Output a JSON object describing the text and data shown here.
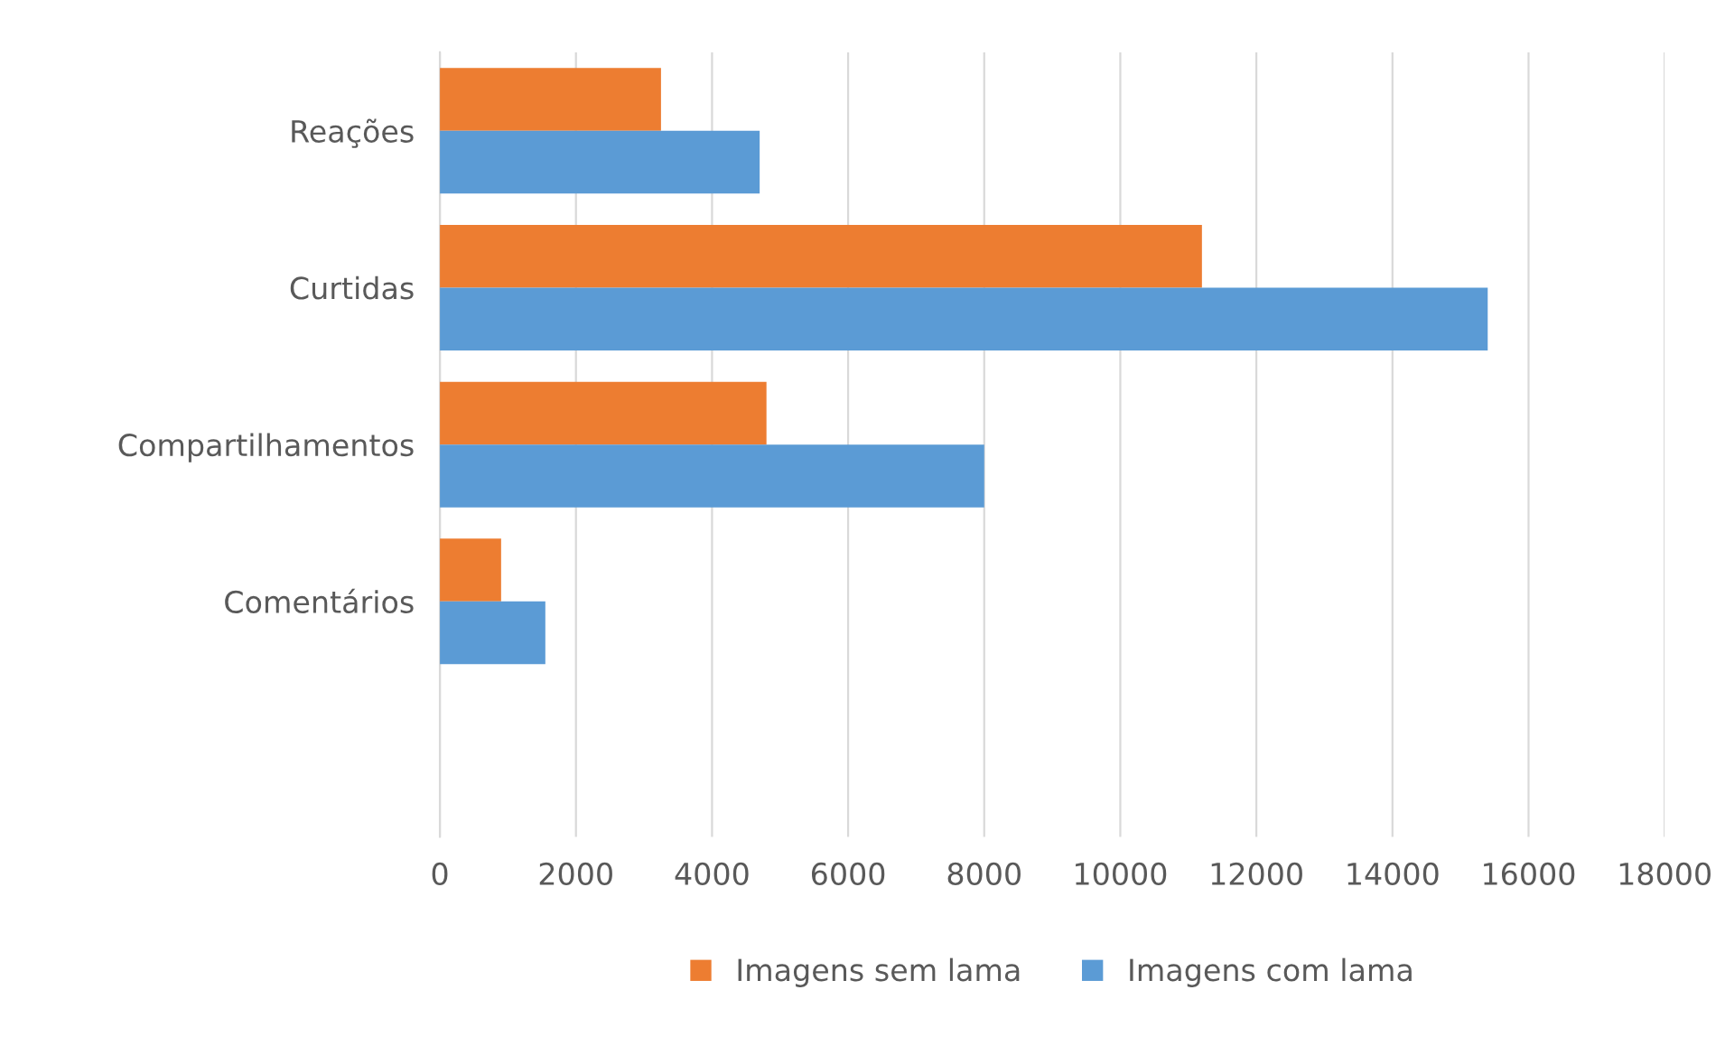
{
  "chart_data": {
    "type": "bar",
    "orientation": "horizontal",
    "categories": [
      "Reações",
      "Curtidas",
      "Compartilhamentos",
      "Comentários",
      null
    ],
    "series": [
      {
        "name": "Imagens sem lama",
        "color": "#ed7d31",
        "values": [
          3250,
          11200,
          4800,
          900,
          null
        ]
      },
      {
        "name": "Imagens com lama",
        "color": "#5b9bd5",
        "values": [
          4700,
          15400,
          8000,
          1550,
          null
        ]
      }
    ],
    "xlim": [
      0,
      18000
    ],
    "xticks": [
      0,
      2000,
      4000,
      6000,
      8000,
      10000,
      12000,
      14000,
      16000,
      18000
    ],
    "grid": "x",
    "legend": "bottom"
  }
}
